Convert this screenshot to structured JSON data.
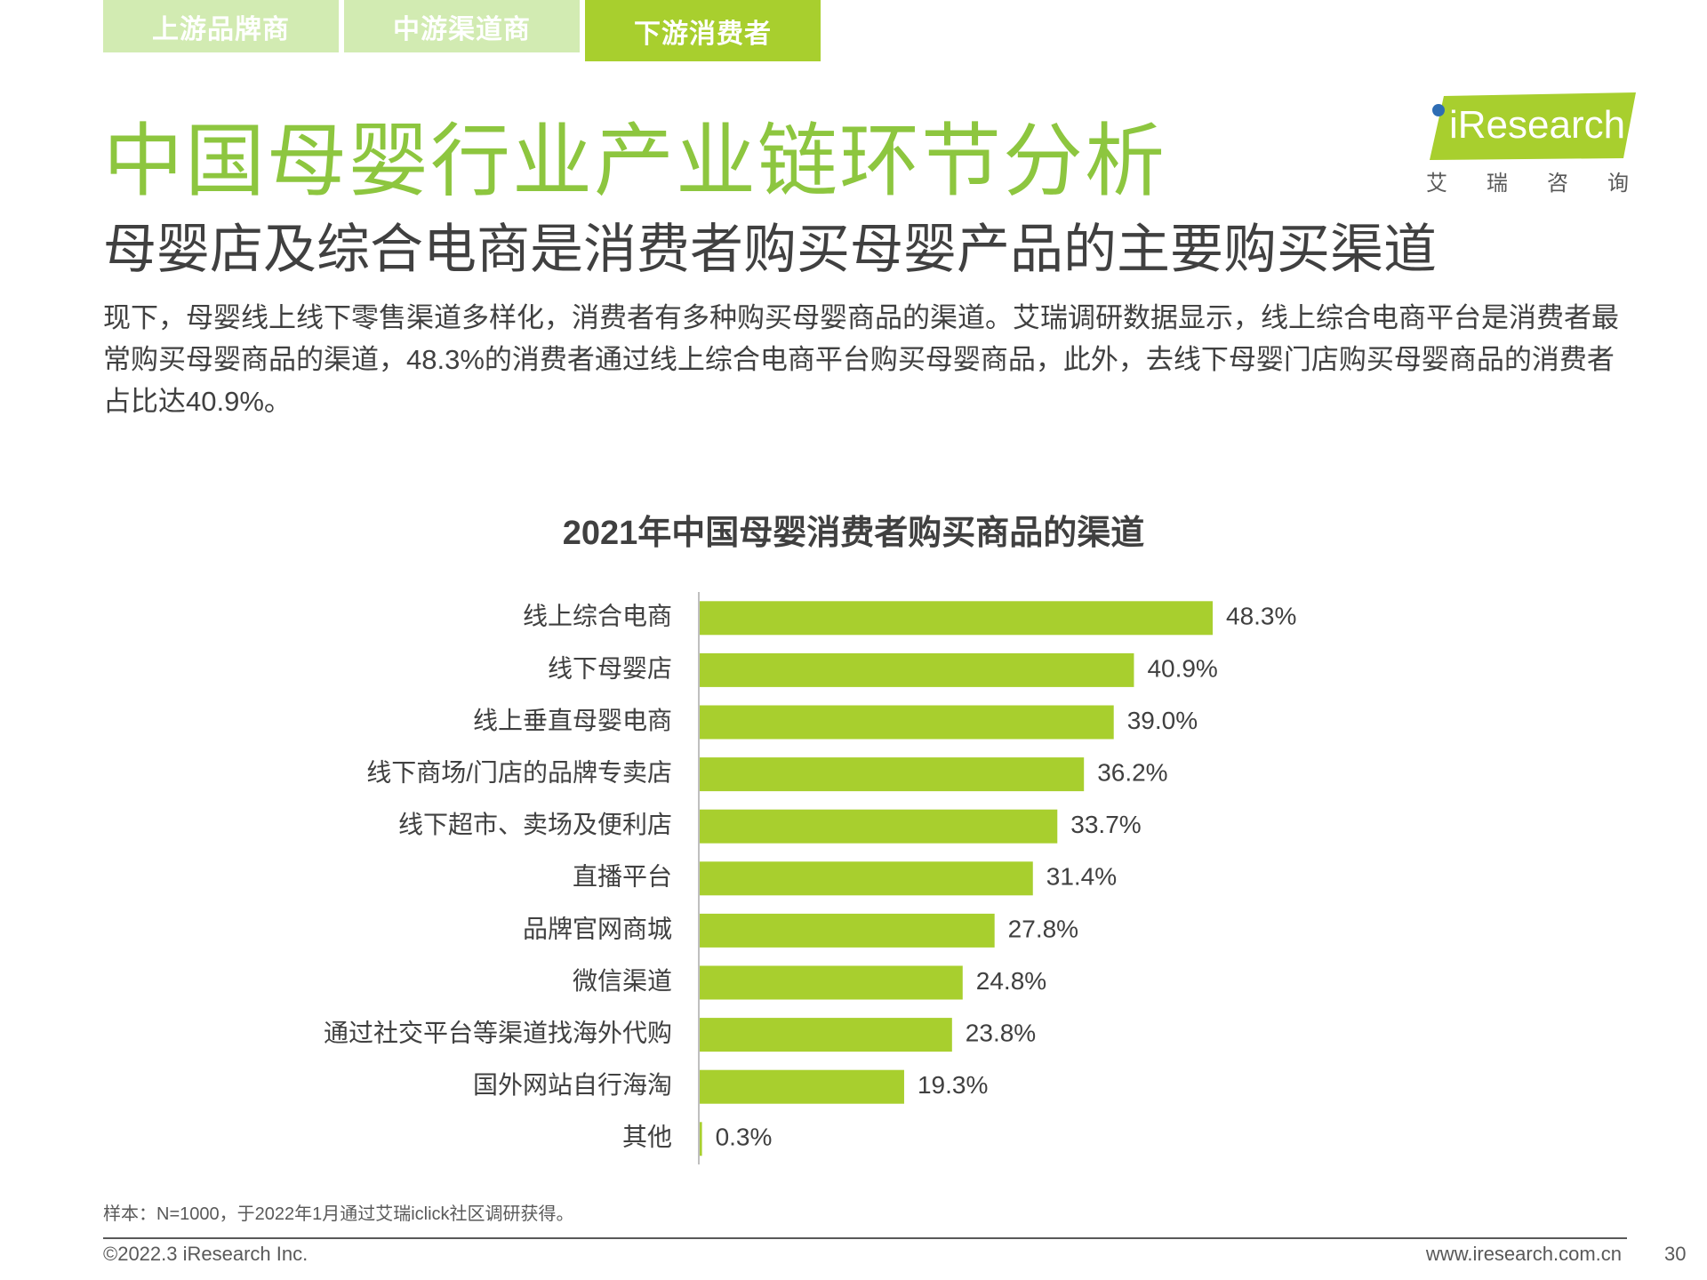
{
  "tabs": [
    {
      "label": "上游品牌商"
    },
    {
      "label": "中游渠道商"
    },
    {
      "label": "下游消费者"
    }
  ],
  "title": "中国母婴行业产业链环节分析",
  "subtitle": "母婴店及综合电商是消费者购买母婴产品的主要购买渠道",
  "logo": {
    "wordmark": "iResearch",
    "cn": "艾瑞咨询"
  },
  "description": "现下，母婴线上线下零售渠道多样化，消费者有多种购买母婴商品的渠道。艾瑞调研数据显示，线上综合电商平台是消费者最常购买母婴商品的渠道，48.3%的消费者通过线上综合电商平台购买母婴商品，此外，去线下母婴门店购买母婴商品的消费者占比达40.9%。",
  "colors": {
    "accent": "#a8cf2e",
    "title_green": "#8dc63f",
    "tab_inactive": "#d2ebb2",
    "text": "#404040"
  },
  "chart_data": {
    "type": "bar",
    "orientation": "horizontal",
    "title": "2021年中国母婴消费者购买商品的渠道",
    "categories": [
      "线上综合电商",
      "线下母婴店",
      "线上垂直母婴电商",
      "线下商场/门店的品牌专卖店",
      "线下超市、卖场及便利店",
      "直播平台",
      "品牌官网商城",
      "微信渠道",
      "通过社交平台等渠道找海外代购",
      "国外网站自行海淘",
      "其他"
    ],
    "values": [
      48.3,
      40.9,
      39.0,
      36.2,
      33.7,
      31.4,
      27.8,
      24.8,
      23.8,
      19.3,
      0.3
    ],
    "value_labels": [
      "48.3%",
      "40.9%",
      "39.0%",
      "36.2%",
      "33.7%",
      "31.4%",
      "27.8%",
      "24.8%",
      "23.8%",
      "19.3%",
      "0.3%"
    ],
    "unit": "%",
    "xlim": [
      0,
      48.3
    ],
    "color": "#a8cf2e",
    "grid": false,
    "legend": "none"
  },
  "footnote": "样本：N=1000，于2022年1月通过艾瑞iclick社区调研获得。",
  "footer": {
    "copyright": "©2022.3 iResearch Inc.",
    "website": "www.iresearch.com.cn",
    "page": "30"
  }
}
